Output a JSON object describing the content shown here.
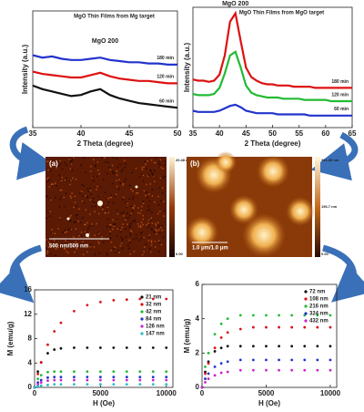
{
  "chart_data": [
    {
      "type": "line",
      "title": "MgO Thin Films from Mg target",
      "x_label": "2 Theta (degree)",
      "y_label": "Intensity (a.u.)",
      "annotation": "MgO 200",
      "x": [
        35,
        36,
        37,
        38,
        39,
        40,
        41,
        42,
        43,
        44,
        45,
        46,
        47,
        48,
        49,
        50
      ],
      "xlim": [
        35,
        50
      ],
      "xticks": [
        35,
        40,
        45,
        50
      ],
      "ylim": [
        0,
        100
      ],
      "series": [
        {
          "name": "180 min",
          "color": "#2233cc",
          "values": [
            62,
            60,
            61,
            59,
            58,
            58,
            59,
            60,
            58,
            57,
            56,
            56,
            55,
            55,
            54,
            54
          ]
        },
        {
          "name": "120 min",
          "color": "#dd1111",
          "values": [
            48,
            46,
            45,
            44,
            43,
            43,
            45,
            47,
            44,
            42,
            41,
            40,
            40,
            39,
            38,
            38
          ]
        },
        {
          "name": "60 min",
          "color": "#111111",
          "values": [
            36,
            33,
            31,
            29,
            27,
            28,
            31,
            33,
            28,
            25,
            23,
            21,
            20,
            19,
            18,
            17
          ]
        }
      ]
    },
    {
      "type": "line",
      "title": "MgO Thin Films from MgO target",
      "x_label": "2 Theta (degree)",
      "y_label": "Intensity (a.u.)",
      "annotation": "MgO 200",
      "x": [
        35,
        36,
        37,
        38,
        39,
        40,
        41,
        42,
        43,
        44,
        45,
        46,
        47,
        48,
        49,
        50,
        51,
        52,
        53,
        54,
        55,
        56,
        57,
        58,
        59,
        60,
        61,
        62,
        63,
        64,
        65
      ],
      "xlim": [
        35,
        65
      ],
      "xticks": [
        35,
        40,
        45,
        50,
        55,
        60,
        65
      ],
      "ylim": [
        0,
        100
      ],
      "series": [
        {
          "name": "180 min",
          "color": "#dd1111",
          "values": [
            40,
            39,
            39,
            38,
            39,
            44,
            60,
            88,
            95,
            72,
            50,
            42,
            39,
            37,
            36,
            36,
            35,
            35,
            35,
            34,
            34,
            34,
            34,
            33,
            33,
            33,
            33,
            33,
            33,
            33,
            33
          ]
        },
        {
          "name": "120 min",
          "color": "#22bb33",
          "values": [
            28,
            27,
            27,
            27,
            28,
            33,
            45,
            60,
            63,
            50,
            35,
            29,
            27,
            26,
            25,
            25,
            25,
            24,
            24,
            24,
            24,
            23,
            23,
            23,
            23,
            23,
            22,
            22,
            22,
            22,
            22
          ]
        },
        {
          "name": "60 min",
          "color": "#2233cc",
          "values": [
            14,
            13,
            13,
            13,
            13,
            14,
            16,
            18,
            19,
            17,
            14,
            13,
            12,
            12,
            12,
            12,
            11,
            11,
            11,
            11,
            11,
            11,
            10,
            10,
            10,
            10,
            10,
            10,
            10,
            10,
            10
          ]
        }
      ]
    },
    {
      "type": "scatter",
      "x_label": "H (Oe)",
      "y_label": "M (emu/g)",
      "x": [
        0,
        250,
        500,
        1000,
        1500,
        2000,
        3000,
        4000,
        5000,
        6000,
        7000,
        8000,
        9000,
        10000
      ],
      "xlim": [
        0,
        10500
      ],
      "xticks": [
        0,
        5000,
        10000
      ],
      "ylim": [
        0,
        16
      ],
      "yticks": [
        0,
        4,
        8,
        12,
        16
      ],
      "series": [
        {
          "name": "21 nm",
          "color": "#111111",
          "values": [
            0,
            2.6,
            4.1,
            5.6,
            6.2,
            6.4,
            6.5,
            6.5,
            6.5,
            6.5,
            6.5,
            6.5,
            6.5,
            6.5
          ]
        },
        {
          "name": "32 nm",
          "color": "#dd1111",
          "values": [
            0,
            2.2,
            4.1,
            7.0,
            9.2,
            10.6,
            12.5,
            13.5,
            14.0,
            14.3,
            14.4,
            14.5,
            14.5,
            14.5
          ]
        },
        {
          "name": "42 nm",
          "color": "#22bb33",
          "values": [
            0,
            1.4,
            2.0,
            2.5,
            2.6,
            2.6,
            2.6,
            2.6,
            2.6,
            2.6,
            2.6,
            2.6,
            2.6,
            2.6
          ]
        },
        {
          "name": "84 nm",
          "color": "#2233cc",
          "values": [
            0,
            0.8,
            1.2,
            1.6,
            1.7,
            1.7,
            1.7,
            1.7,
            1.7,
            1.7,
            1.7,
            1.7,
            1.7,
            1.7
          ]
        },
        {
          "name": "126 nm",
          "color": "#cc22cc",
          "values": [
            0,
            0.5,
            0.8,
            1.1,
            1.2,
            1.2,
            1.2,
            1.2,
            1.2,
            1.2,
            1.2,
            1.2,
            1.2,
            1.2
          ]
        },
        {
          "name": "147 nm",
          "color": "#22bbcc",
          "values": [
            0,
            0.2,
            0.3,
            0.4,
            0.5,
            0.5,
            0.5,
            0.5,
            0.5,
            0.5,
            0.5,
            0.5,
            0.5,
            0.5
          ]
        }
      ]
    },
    {
      "type": "scatter",
      "x_label": "H (Oe)",
      "y_label": "M (emu/g)",
      "x": [
        0,
        250,
        500,
        1000,
        1500,
        2000,
        3000,
        4000,
        5000,
        6000,
        7000,
        8000,
        9000,
        10000
      ],
      "xlim": [
        0,
        10500
      ],
      "xticks": [
        0,
        5000,
        10000
      ],
      "ylim": [
        0,
        6
      ],
      "yticks": [
        0,
        2,
        4,
        6
      ],
      "series": [
        {
          "name": "72 nm",
          "color": "#111111",
          "values": [
            0,
            0.9,
            1.5,
            2.1,
            2.3,
            2.4,
            2.4,
            2.4,
            2.4,
            2.4,
            2.4,
            2.4,
            2.4,
            2.4
          ]
        },
        {
          "name": "108 nm",
          "color": "#dd1111",
          "values": [
            0,
            0.8,
            1.4,
            2.3,
            2.9,
            3.2,
            3.4,
            3.5,
            3.5,
            3.5,
            3.5,
            3.5,
            3.5,
            3.5
          ]
        },
        {
          "name": "216 nm",
          "color": "#22bb33",
          "values": [
            0,
            1.2,
            2.0,
            3.1,
            3.7,
            4.0,
            4.2,
            4.2,
            4.2,
            4.2,
            4.2,
            4.2,
            4.2,
            4.2
          ]
        },
        {
          "name": "324 nm",
          "color": "#2233cc",
          "values": [
            0,
            0.5,
            0.8,
            1.2,
            1.4,
            1.5,
            1.6,
            1.6,
            1.6,
            1.6,
            1.6,
            1.6,
            1.6,
            1.6
          ]
        },
        {
          "name": "432 nm",
          "color": "#cc22cc",
          "values": [
            0,
            0.3,
            0.5,
            0.7,
            0.85,
            0.9,
            1.0,
            1.0,
            1.0,
            1.0,
            1.0,
            1.0,
            1.0,
            1.0
          ]
        }
      ]
    }
  ],
  "afm_images": [
    {
      "label": "(a)",
      "scale_bar": "500 nm/500 nm",
      "colorbar_top": "20.48 nm",
      "colorbar_bottom": "0.00"
    },
    {
      "label": "(b)",
      "scale_bar": "1.0 μm/1.0 μm",
      "colorbar_top": "391.40 nm",
      "colorbar_mid": "196.7 nm",
      "colorbar_bottom": "0.00"
    }
  ]
}
